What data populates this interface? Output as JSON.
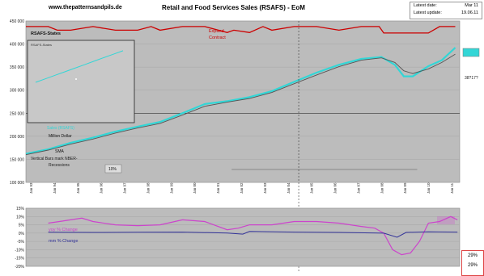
{
  "header": {
    "site": "www.thepatternsandpils.de",
    "title": "Retail and Food Services Sales (RSAFS) - EoM",
    "latest_date_label": "Latest date:",
    "latest_date_value": "Mar 11",
    "latest_update_label": "Latest update:",
    "latest_update_value": "19.06.11"
  },
  "chart_data": [
    {
      "type": "line",
      "title": "",
      "ylim": [
        100000,
        450000
      ],
      "y_ticks": [
        "450 000",
        "400 000",
        "350 000",
        "300 000",
        "250 000",
        "200 000",
        "150 000",
        "100 000"
      ],
      "x_ticks": [
        "Jan 93",
        "Jan 94",
        "Jan 95",
        "Jan 96",
        "Jan 97",
        "Jan 98",
        "Jan 99",
        "Jan 00",
        "Jan 01",
        "Jan 02",
        "Jan 03",
        "Jan 04",
        "Jan 05",
        "Jan 06",
        "Jan 07",
        "Jan 08",
        "Jan 09",
        "Jan 10",
        "Jan 11"
      ],
      "series": [
        {
          "name": "Retail and Food Services Sales (RSAFS)",
          "color": "#33d6d6",
          "x": [
            1992.0,
            1993.0,
            1994.0,
            1995.0,
            1996.0,
            1997.0,
            1998.0,
            1999.0,
            2000.0,
            2001.0,
            2002.0,
            2003.0,
            2004.0,
            2005.0,
            2006.0,
            2007.0,
            2007.9,
            2008.5,
            2008.9,
            2009.3,
            2010.0,
            2010.6,
            2011.2
          ],
          "values": [
            162000,
            172000,
            186000,
            197000,
            210000,
            221000,
            231000,
            250000,
            270000,
            276000,
            285000,
            298000,
            318000,
            338000,
            355000,
            368000,
            372000,
            355000,
            330000,
            330000,
            352000,
            365000,
            392000
          ]
        },
        {
          "name": "SMA",
          "color": "#555555",
          "x": [
            1992.0,
            1993.0,
            1994.0,
            1995.0,
            1996.0,
            1997.0,
            1998.0,
            1999.0,
            2000.0,
            2001.0,
            2002.0,
            2003.0,
            2004.0,
            2005.0,
            2006.0,
            2007.0,
            2007.9,
            2008.5,
            2008.9,
            2009.3,
            2010.0,
            2010.6,
            2011.2
          ],
          "values": [
            160000,
            170000,
            183000,
            194000,
            207000,
            218000,
            228000,
            246000,
            265000,
            274000,
            282000,
            295000,
            314000,
            333000,
            351000,
            365000,
            370000,
            360000,
            342000,
            336000,
            346000,
            360000,
            378000
          ]
        },
        {
          "name": "RSAFS-States",
          "color": "#cc0000",
          "x": [
            1992.0,
            1993.0,
            1993.4,
            1994.0,
            1995.0,
            1996.0,
            1997.0,
            1997.6,
            1998.0,
            1999.0,
            2000.0,
            2001.0,
            2001.3,
            2002.0,
            2002.6,
            2003.0,
            2004.0,
            2005.0,
            2006.0,
            2007.0,
            2007.8,
            2008.0,
            2009.0,
            2010.0,
            2010.5,
            2011.2
          ],
          "values": [
            438000,
            438000,
            430000,
            430000,
            438000,
            430000,
            430000,
            438000,
            430000,
            438000,
            438000,
            425000,
            430000,
            425000,
            438000,
            430000,
            438000,
            438000,
            430000,
            438000,
            438000,
            424000,
            424000,
            424000,
            438000,
            438000
          ]
        },
        {
          "name": "Recessions",
          "color": "#888888",
          "x": [
            2001.2,
            2001.9,
            2007.9,
            2009.5
          ],
          "values": [
            128000,
            128000,
            128000,
            128000
          ]
        }
      ]
    },
    {
      "type": "line",
      "ylim": [
        -20,
        15
      ],
      "y_ticks": [
        "15%",
        "10%",
        "5%",
        "0%",
        "-5%",
        "-10%",
        "-15%",
        "-20%"
      ],
      "series": [
        {
          "name": "yoy % Change",
          "color": "#cc44cc",
          "x": [
            1993.0,
            1993.5,
            1994.0,
            1994.5,
            1995.0,
            1996.0,
            1997.0,
            1998.0,
            1999.0,
            2000.0,
            2001.0,
            2001.5,
            2002.0,
            2003.0,
            2004.0,
            2005.0,
            2006.0,
            2007.0,
            2007.6,
            2008.0,
            2008.4,
            2008.8,
            2009.2,
            2009.6,
            2010.0,
            2010.5,
            2011.0,
            2011.3
          ],
          "values": [
            6,
            7,
            8,
            9,
            7,
            5,
            4.5,
            5,
            8,
            7,
            2,
            3,
            5,
            5,
            7,
            7,
            6,
            4,
            3,
            0,
            -10,
            -13,
            -12,
            -5,
            6,
            7,
            10,
            8
          ]
        },
        {
          "name": "mm % Change",
          "color": "#333399",
          "x": [
            1993.0,
            1995.0,
            1997.0,
            1999.0,
            2001.0,
            2001.7,
            2002.0,
            2004.0,
            2006.0,
            2008.0,
            2008.6,
            2009.0,
            2010.0,
            2011.3
          ],
          "values": [
            0.5,
            0.4,
            0.5,
            0.6,
            0.1,
            -0.6,
            1,
            0.6,
            0.4,
            0,
            -2.5,
            0.4,
            0.8,
            0.6
          ]
        }
      ]
    }
  ],
  "legend": {
    "states": "RSAFS-States",
    "expand": "Expand",
    "contract": "Contract",
    "retail": "Retail and Food Services",
    "retail_code": "Sales (RSAFS)",
    "million": "Million Dollar",
    "sma": "SMA",
    "vertical_bars": "Vertical Bars mark NBER-",
    "recessions": "Recessions",
    "box_pct": "10%",
    "last_value": "38?17?",
    "yoy_label": "yoy % Change",
    "mm_label": "mm % Change",
    "red_box_top": "29%",
    "red_box_bottom": "29%",
    "inset_label": "RSAFS-States"
  }
}
